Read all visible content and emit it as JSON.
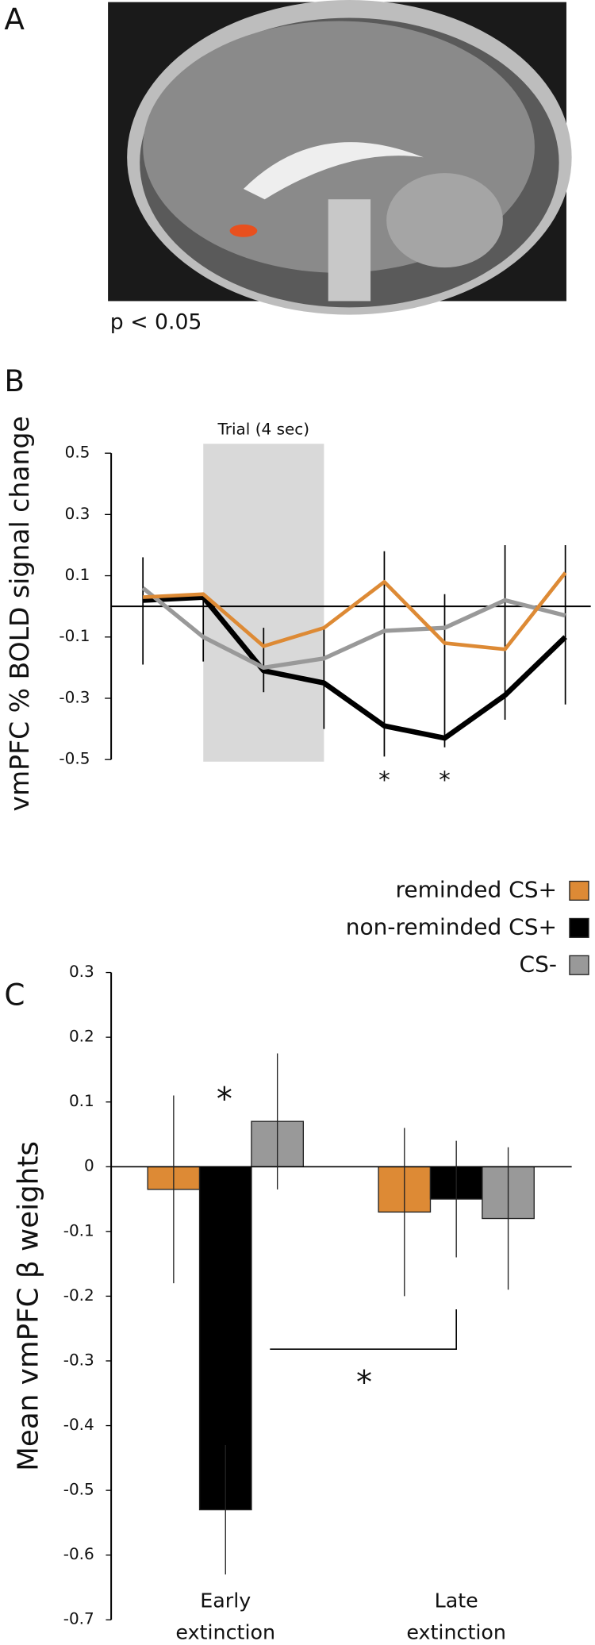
{
  "image_panel": {
    "label": "A",
    "caption": "p < 0.05"
  },
  "chart_data": [
    {
      "type": "line",
      "panel_label": "B",
      "y_label": "vmPFC % BOLD signal change",
      "categories": [
        null,
        null,
        null,
        null,
        null,
        null,
        null,
        null
      ],
      "trial_window": [
        false,
        true,
        true,
        true,
        false,
        false,
        false,
        false
      ],
      "trial_label": "Trial (4 sec)",
      "significance": [
        null,
        null,
        null,
        null,
        "*",
        "*",
        null,
        null
      ],
      "series": [
        {
          "color": "#000000",
          "width": 5,
          "values": [
            0.02,
            0.03,
            -0.21,
            -0.25,
            -0.39,
            -0.43,
            -0.29,
            -0.1
          ]
        },
        {
          "color": "#999999",
          "width": 4,
          "values": [
            0.06,
            -0.1,
            -0.2,
            -0.17,
            -0.08,
            -0.07,
            0.02,
            -0.03
          ]
        },
        {
          "color": "#dd8a35",
          "width": 3.5,
          "values": [
            0.03,
            0.04,
            -0.13,
            -0.07,
            0.08,
            -0.12,
            -0.14,
            0.11
          ]
        }
      ],
      "error_bars": {
        "high": [
          0.16,
          0.04,
          -0.07,
          -0.07,
          0.18,
          0.04,
          0.2,
          0.2
        ],
        "low": [
          -0.19,
          -0.18,
          -0.28,
          -0.4,
          -0.49,
          -0.46,
          -0.37,
          -0.32
        ]
      },
      "ylim": [
        -0.5,
        0.5
      ],
      "yticks": [
        0.5,
        0.3,
        0.1,
        -0.1,
        -0.3,
        -0.5
      ]
    },
    {
      "type": "bar",
      "panel_label": "C",
      "y_label": "Mean vmPFC β weights",
      "categories": [
        "Early extinction",
        "Late extinction"
      ],
      "series": [
        {
          "name": "reminded CS+",
          "color": "#dd8a35",
          "values": [
            -0.035,
            -0.07
          ],
          "errors": [
            0.145,
            0.13
          ]
        },
        {
          "name": "non-reminded CS+",
          "color": "#000000",
          "values": [
            -0.53,
            -0.05
          ],
          "errors": [
            0.1,
            0.09
          ]
        },
        {
          "name": "CS-",
          "color": "#999999",
          "values": [
            0.07,
            -0.08
          ],
          "errors": [
            0.105,
            0.11
          ]
        }
      ],
      "annotations": [
        "*",
        "*"
      ],
      "ylim": [
        -0.7,
        0.3
      ],
      "yticks": [
        0.3,
        0.2,
        0.1,
        0,
        -0.1,
        -0.2,
        -0.3,
        -0.4,
        -0.5,
        -0.6,
        -0.7
      ],
      "legend": "top-right"
    }
  ]
}
